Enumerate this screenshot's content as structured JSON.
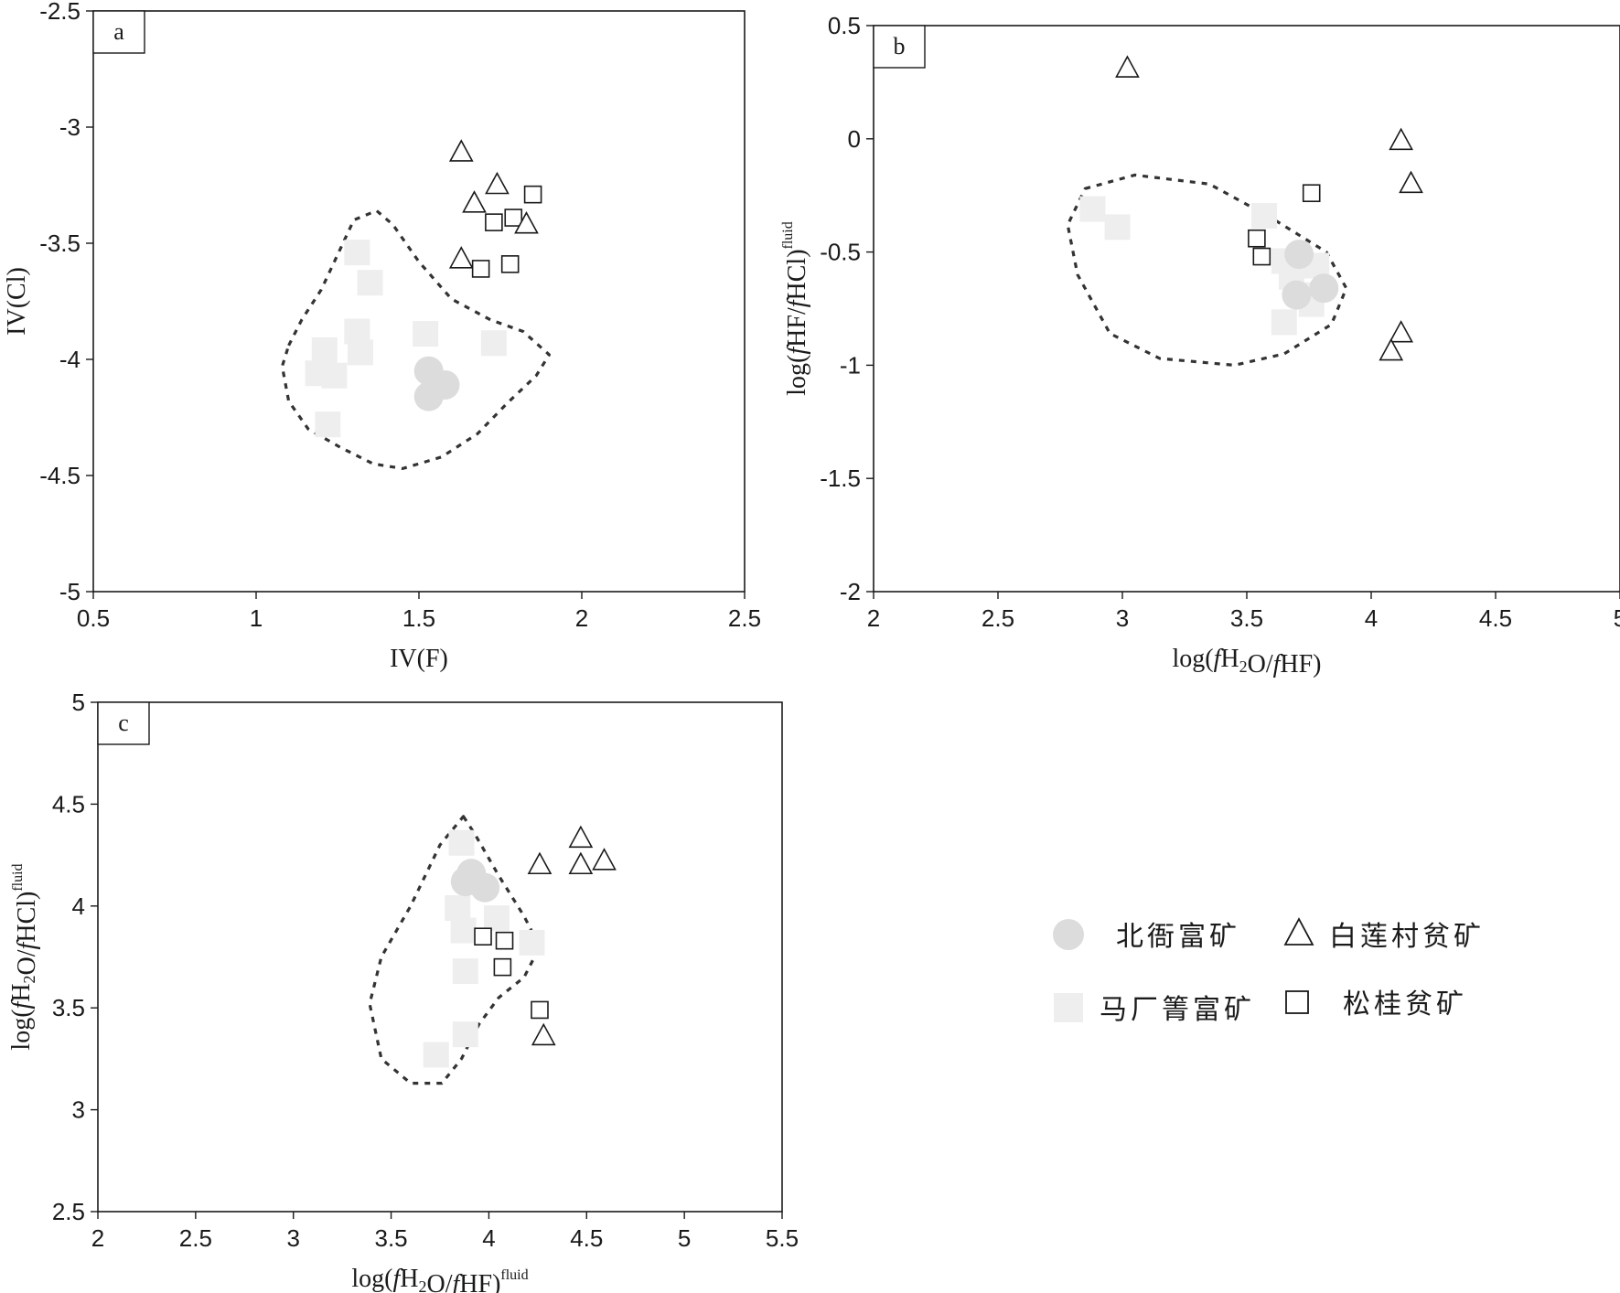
{
  "chart_data": [
    {
      "panel": "a",
      "type": "scatter",
      "xlabel": "IV(F)",
      "ylabel": "IV(Cl)",
      "xlim": [
        0.5,
        2.5
      ],
      "ylim": [
        -5,
        -2.5
      ],
      "xticks": [
        "0.5",
        "1",
        "1.5",
        "2",
        "2.5"
      ],
      "yticks": [
        "-2.5",
        "-3",
        "-3.5",
        "-4",
        "-4.5",
        "-5"
      ],
      "series": [
        {
          "key": "beiya",
          "points": [
            [
              1.53,
              -4.05
            ],
            [
              1.58,
              -4.11
            ],
            [
              1.53,
              -4.16
            ]
          ]
        },
        {
          "key": "machang",
          "points": [
            [
              1.31,
              -3.54
            ],
            [
              1.35,
              -3.67
            ],
            [
              1.31,
              -3.88
            ],
            [
              1.32,
              -3.97
            ],
            [
              1.21,
              -3.96
            ],
            [
              1.19,
              -4.06
            ],
            [
              1.24,
              -4.07
            ],
            [
              1.22,
              -4.28
            ],
            [
              1.52,
              -3.89
            ],
            [
              1.73,
              -3.93
            ]
          ]
        },
        {
          "key": "bailiancun",
          "points": [
            [
              1.63,
              -3.11
            ],
            [
              1.74,
              -3.25
            ],
            [
              1.67,
              -3.33
            ],
            [
              1.83,
              -3.42
            ],
            [
              1.63,
              -3.57
            ]
          ]
        },
        {
          "key": "songgui",
          "points": [
            [
              1.85,
              -3.29
            ],
            [
              1.79,
              -3.39
            ],
            [
              1.73,
              -3.41
            ],
            [
              1.78,
              -3.59
            ],
            [
              1.69,
              -3.61
            ]
          ]
        }
      ],
      "outline": [
        [
          1.1,
          -3.94
        ],
        [
          1.14,
          -3.83
        ],
        [
          1.2,
          -3.7
        ],
        [
          1.25,
          -3.55
        ],
        [
          1.3,
          -3.4
        ],
        [
          1.37,
          -3.36
        ],
        [
          1.42,
          -3.42
        ],
        [
          1.5,
          -3.58
        ],
        [
          1.6,
          -3.74
        ],
        [
          1.72,
          -3.83
        ],
        [
          1.82,
          -3.88
        ],
        [
          1.9,
          -3.98
        ],
        [
          1.86,
          -4.07
        ],
        [
          1.77,
          -4.19
        ],
        [
          1.68,
          -4.32
        ],
        [
          1.57,
          -4.42
        ],
        [
          1.45,
          -4.47
        ],
        [
          1.36,
          -4.45
        ],
        [
          1.26,
          -4.38
        ],
        [
          1.16,
          -4.3
        ],
        [
          1.1,
          -4.18
        ],
        [
          1.08,
          -4.03
        ]
      ]
    },
    {
      "panel": "b",
      "type": "scatter",
      "xlabel": "log(fH2O/fHF)",
      "ylabel": "log(fHF/fHCl)",
      "ylabel_sup": "fluid",
      "xlim": [
        2,
        5
      ],
      "ylim": [
        -2,
        0.5
      ],
      "xticks": [
        "2",
        "2.5",
        "3",
        "3.5",
        "4",
        "4.5",
        "5"
      ],
      "yticks": [
        "0.5",
        "0",
        "-0.5",
        "-1",
        "-1.5",
        "-2"
      ],
      "series": [
        {
          "key": "beiya",
          "points": [
            [
              3.71,
              -0.51
            ],
            [
              3.7,
              -0.69
            ],
            [
              3.81,
              -0.66
            ]
          ]
        },
        {
          "key": "machang",
          "points": [
            [
              2.88,
              -0.31
            ],
            [
              2.98,
              -0.39
            ],
            [
              3.57,
              -0.34
            ],
            [
              3.65,
              -0.54
            ],
            [
              3.78,
              -0.56
            ],
            [
              3.68,
              -0.61
            ],
            [
              3.73,
              -0.69
            ],
            [
              3.76,
              -0.73
            ],
            [
              3.65,
              -0.81
            ]
          ]
        },
        {
          "key": "bailiancun",
          "points": [
            [
              3.02,
              0.31
            ],
            [
              4.12,
              -0.01
            ],
            [
              4.16,
              -0.2
            ],
            [
              4.12,
              -0.86
            ],
            [
              4.08,
              -0.94
            ]
          ]
        },
        {
          "key": "songgui",
          "points": [
            [
              3.76,
              -0.24
            ],
            [
              3.54,
              -0.44
            ],
            [
              3.56,
              -0.52
            ]
          ]
        }
      ],
      "outline": [
        [
          2.85,
          -0.22
        ],
        [
          3.05,
          -0.16
        ],
        [
          3.35,
          -0.2
        ],
        [
          3.6,
          -0.35
        ],
        [
          3.82,
          -0.5
        ],
        [
          3.9,
          -0.66
        ],
        [
          3.84,
          -0.82
        ],
        [
          3.65,
          -0.95
        ],
        [
          3.45,
          -1.0
        ],
        [
          3.15,
          -0.97
        ],
        [
          2.95,
          -0.86
        ],
        [
          2.82,
          -0.6
        ],
        [
          2.78,
          -0.38
        ]
      ]
    },
    {
      "panel": "c",
      "type": "scatter",
      "xlabel": "log(fH2O/fHF)",
      "xlabel_sup": "fluid",
      "ylabel": "log(fH2O/fHCl)",
      "ylabel_sup": "fluid",
      "xlim": [
        2,
        5.5
      ],
      "ylim": [
        2.5,
        5
      ],
      "xticks": [
        "2",
        "2.5",
        "3",
        "3.5",
        "4",
        "4.5",
        "5",
        "5.5"
      ],
      "yticks": [
        "5",
        "4.5",
        "4",
        "3.5",
        "3",
        "2.5"
      ],
      "series": [
        {
          "key": "beiya",
          "points": [
            [
              3.91,
              4.16
            ],
            [
              3.98,
              4.09
            ],
            [
              3.88,
              4.12
            ]
          ]
        },
        {
          "key": "machang",
          "points": [
            [
              3.86,
              4.31
            ],
            [
              3.84,
              3.99
            ],
            [
              3.87,
              3.88
            ],
            [
              3.88,
              3.68
            ],
            [
              4.04,
              3.94
            ],
            [
              4.22,
              3.82
            ],
            [
              3.88,
              3.37
            ],
            [
              3.73,
              3.27
            ]
          ]
        },
        {
          "key": "bailiancun",
          "points": [
            [
              4.47,
              4.33
            ],
            [
              4.59,
              4.22
            ],
            [
              4.47,
              4.2
            ],
            [
              4.26,
              4.2
            ],
            [
              4.28,
              3.36
            ]
          ]
        },
        {
          "key": "songgui",
          "points": [
            [
              3.97,
              3.85
            ],
            [
              4.08,
              3.83
            ],
            [
              4.07,
              3.7
            ],
            [
              4.26,
              3.49
            ]
          ]
        }
      ],
      "outline": [
        [
          3.87,
          4.44
        ],
        [
          3.93,
          4.35
        ],
        [
          4.05,
          4.15
        ],
        [
          4.18,
          3.95
        ],
        [
          4.26,
          3.8
        ],
        [
          4.18,
          3.65
        ],
        [
          4.05,
          3.55
        ],
        [
          3.95,
          3.42
        ],
        [
          3.86,
          3.25
        ],
        [
          3.76,
          3.13
        ],
        [
          3.6,
          3.13
        ],
        [
          3.45,
          3.25
        ],
        [
          3.39,
          3.52
        ],
        [
          3.45,
          3.75
        ],
        [
          3.6,
          4.0
        ],
        [
          3.75,
          4.3
        ]
      ]
    }
  ],
  "legend": [
    {
      "key": "beiya",
      "label": "北衙富矿"
    },
    {
      "key": "bailiancun",
      "label": "白莲村贫矿"
    },
    {
      "key": "machang",
      "label": "马厂箐富矿"
    },
    {
      "key": "songgui",
      "label": "松桂贫矿"
    }
  ],
  "colors": {
    "beiya": "#dcdcdc",
    "machang": "#eeeeee",
    "outline": "#333333",
    "frame": "#1a1a1a"
  }
}
